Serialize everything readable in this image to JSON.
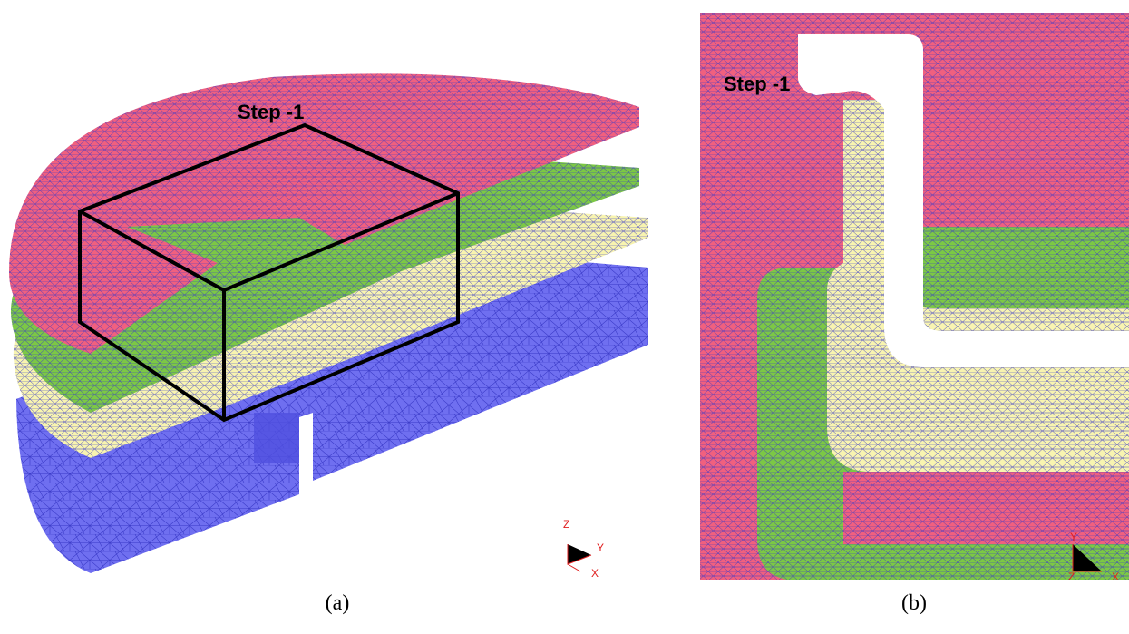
{
  "panels": [
    {
      "step_label": "Step   -1",
      "axes": [
        "Z",
        "Y",
        "X"
      ],
      "caption": "(a)"
    },
    {
      "step_label": "Step   -1",
      "axes": [
        "Y",
        "Z",
        "X"
      ],
      "caption": "(b)"
    }
  ]
}
